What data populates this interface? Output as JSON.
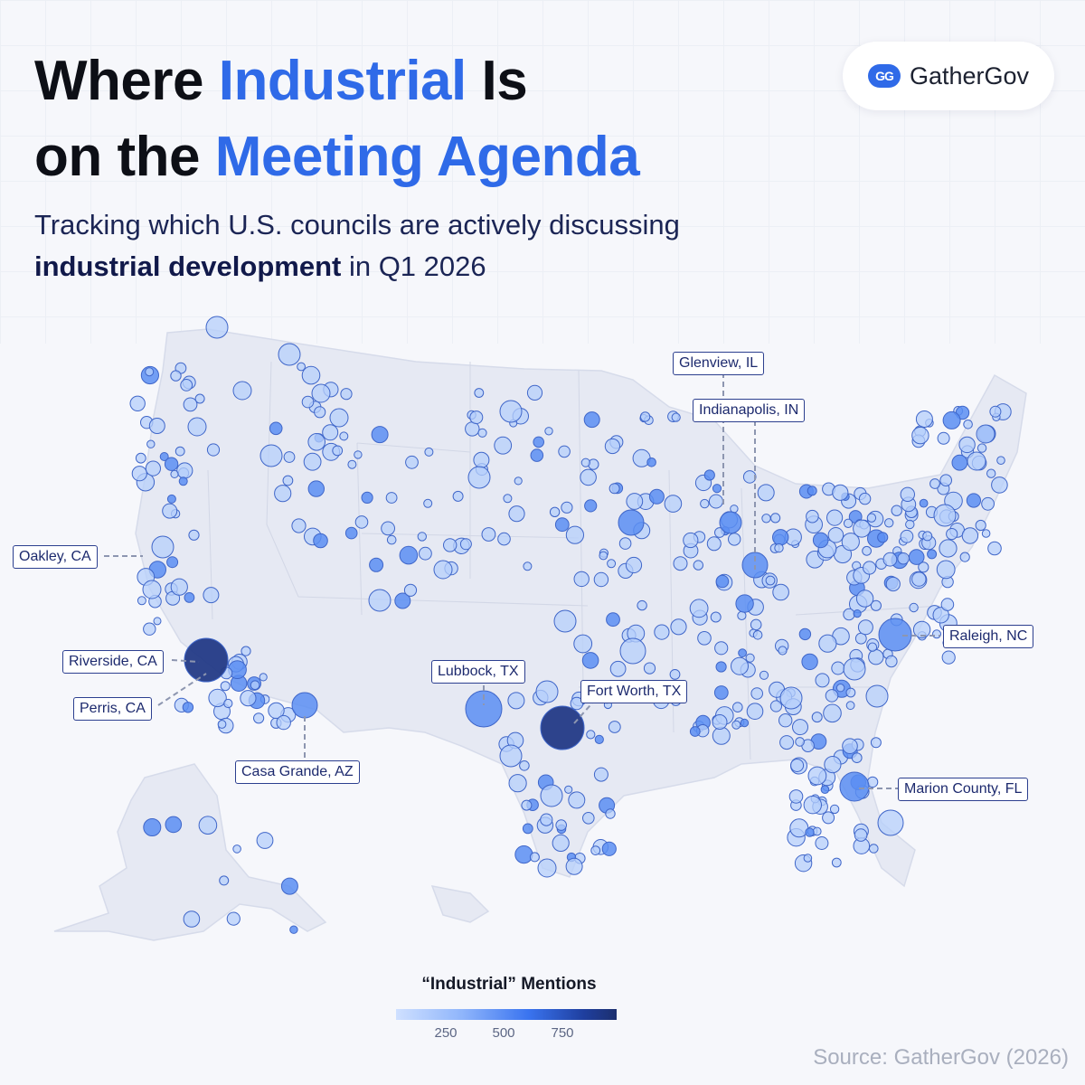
{
  "title": {
    "line1_pre": "Where ",
    "line1_accent": "Industrial",
    "line1_post": " Is",
    "line2_pre": "on the ",
    "line2_accent": "Meeting Agenda"
  },
  "subtitle": {
    "line1": "Tracking which U.S. councils are actively discussing",
    "line2_bold": "industrial development",
    "line2_rest": " in Q1 2026"
  },
  "logo": {
    "mark": "GG",
    "text": "GatherGov",
    "icon": "gathergov-logo-icon"
  },
  "colors": {
    "accent": "#2f6ae8",
    "land": "#e6e9f3",
    "dot_light": "#b6cffb",
    "dot_mid": "#5b8ef2",
    "dot_dark": "#233a86"
  },
  "labels": [
    {
      "id": "glenview",
      "text": "Glenview, IL"
    },
    {
      "id": "indianapolis",
      "text": "Indianapolis, IN"
    },
    {
      "id": "oakley",
      "text": "Oakley, CA"
    },
    {
      "id": "raleigh",
      "text": "Raleigh, NC"
    },
    {
      "id": "riverside",
      "text": "Riverside, CA"
    },
    {
      "id": "lubbock",
      "text": "Lubbock, TX"
    },
    {
      "id": "fortworth",
      "text": "Fort Worth, TX"
    },
    {
      "id": "perris",
      "text": "Perris, CA"
    },
    {
      "id": "casagrande",
      "text": "Casa Grande, AZ"
    },
    {
      "id": "marion",
      "text": "Marion County, FL"
    }
  ],
  "legend": {
    "title": "“Industrial” Mentions",
    "ticks": [
      "250",
      "500",
      "750"
    ]
  },
  "source": "Source: GatherGov (2026)"
}
